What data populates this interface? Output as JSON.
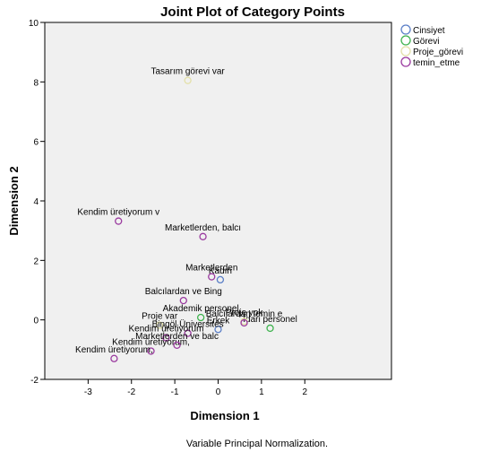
{
  "chart_data": {
    "type": "scatter",
    "title": "Joint Plot of Category Points",
    "xlabel": "Dimension 1",
    "ylabel": "Dimension 2",
    "footnote": "Variable Principal Normalization.",
    "xlim": [
      -4.0,
      4.0
    ],
    "ylim": [
      -2,
      10
    ],
    "xticks": [
      -3,
      -2,
      -1,
      0,
      1,
      2
    ],
    "yticks": [
      -2,
      0,
      2,
      4,
      6,
      8,
      10
    ],
    "grid": false,
    "legend_position": "right",
    "series": [
      {
        "name": "Cinsiyet",
        "color": "#5b7fc7",
        "points": [
          {
            "x": 0.05,
            "y": 1.35,
            "label": "Kadın"
          },
          {
            "x": 0.0,
            "y": -0.32,
            "label": "Erkek"
          }
        ]
      },
      {
        "name": "Görevi",
        "color": "#3fb34f",
        "points": [
          {
            "x": -0.4,
            "y": 0.08,
            "label": "Akademik personel"
          },
          {
            "x": 1.2,
            "y": -0.28,
            "label": "İdari personel"
          }
        ]
      },
      {
        "name": "Proje_görevi",
        "color": "#e3e0a8",
        "points": [
          {
            "x": -0.7,
            "y": 8.05,
            "label": "Tasarım görevi var"
          },
          {
            "x": 0.6,
            "y": -0.05,
            "label": "Proje yok"
          },
          {
            "x": -1.35,
            "y": -0.18,
            "label": "Proje var"
          }
        ]
      },
      {
        "name": "temin_etme",
        "color": "#9a3a9f",
        "points": [
          {
            "x": -2.3,
            "y": 3.32,
            "label": "Kendim üretiyorum v"
          },
          {
            "x": -0.35,
            "y": 2.8,
            "label": "Marketlerden, balcı"
          },
          {
            "x": -0.15,
            "y": 1.45,
            "label": "Marketlerden"
          },
          {
            "x": -0.8,
            "y": 0.65,
            "label": "Balcılardan ve Bing"
          },
          {
            "x": 0.6,
            "y": -0.1,
            "label": "Balcılardan temin e"
          },
          {
            "x": -0.7,
            "y": -0.45,
            "label": "Bingöl Üniversites"
          },
          {
            "x": -1.2,
            "y": -0.6,
            "label": "Kendim üretiyorum"
          },
          {
            "x": -1.55,
            "y": -1.05,
            "label": "Kendim üretiyorum,"
          },
          {
            "x": -2.4,
            "y": -1.3,
            "label": "Kendim üretiyorum,"
          },
          {
            "x": -0.95,
            "y": -0.85,
            "label": "Marketlerden ve balc"
          }
        ]
      }
    ]
  }
}
